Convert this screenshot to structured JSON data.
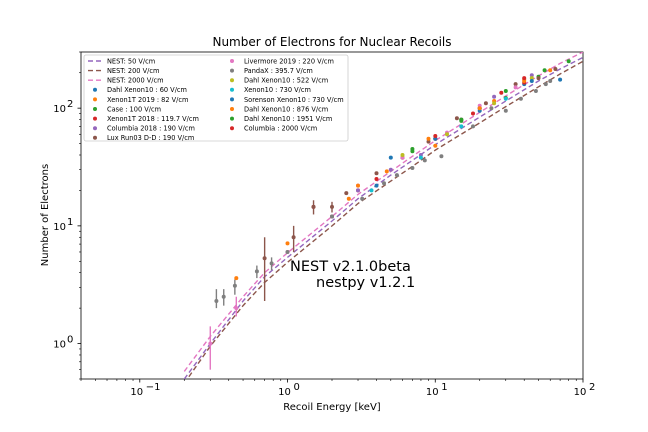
{
  "chart_data": {
    "type": "scatter",
    "title": "Number of Electrons for Nuclear Recoils",
    "xlabel": "Recoil Energy [keV]",
    "ylabel": "Number of Electrons",
    "xscale": "log",
    "yscale": "log",
    "xlim": [
      0.04,
      100
    ],
    "ylim": [
      0.5,
      300
    ],
    "x_ticks": [
      {
        "value": 0.1,
        "base": "10",
        "exp": "−1"
      },
      {
        "value": 1,
        "base": "10",
        "exp": "0"
      },
      {
        "value": 10,
        "base": "10",
        "exp": "1"
      },
      {
        "value": 100,
        "base": "10",
        "exp": "2"
      }
    ],
    "y_ticks": [
      {
        "value": 1,
        "base": "10",
        "exp": "0"
      },
      {
        "value": 10,
        "base": "10",
        "exp": "1"
      },
      {
        "value": 100,
        "base": "10",
        "exp": "2"
      }
    ],
    "grid": false,
    "legend_position": "upper-left",
    "annotations": [
      "NEST v2.1.0beta",
      "nestpy v1.2.1"
    ],
    "curves": [
      {
        "name": "NEST: 50 V/cm",
        "color": "#9467bd",
        "dashed": true,
        "points": [
          [
            0.2,
            0.5
          ],
          [
            0.3,
            1.0
          ],
          [
            0.5,
            2.3
          ],
          [
            0.7,
            3.7
          ],
          [
            1,
            5.4
          ],
          [
            2,
            11
          ],
          [
            3,
            17
          ],
          [
            5,
            27
          ],
          [
            7,
            36
          ],
          [
            10,
            49
          ],
          [
            20,
            84
          ],
          [
            30,
            115
          ],
          [
            50,
            170
          ],
          [
            70,
            215
          ],
          [
            100,
            270
          ]
        ]
      },
      {
        "name": "NEST: 200 V/cm",
        "color": "#8c564b",
        "dashed": true,
        "points": [
          [
            0.2,
            0.46
          ],
          [
            0.3,
            0.95
          ],
          [
            0.5,
            2.1
          ],
          [
            0.7,
            3.3
          ],
          [
            1,
            4.9
          ],
          [
            2,
            10
          ],
          [
            3,
            15.5
          ],
          [
            5,
            24
          ],
          [
            7,
            32
          ],
          [
            10,
            44
          ],
          [
            20,
            75
          ],
          [
            30,
            103
          ],
          [
            50,
            152
          ],
          [
            70,
            195
          ],
          [
            100,
            250
          ]
        ]
      },
      {
        "name": "NEST: 2000 V/cm",
        "color": "#e377c2",
        "dashed": true,
        "points": [
          [
            0.2,
            0.58
          ],
          [
            0.3,
            1.15
          ],
          [
            0.5,
            2.5
          ],
          [
            0.7,
            4.0
          ],
          [
            1,
            5.9
          ],
          [
            2,
            12
          ],
          [
            3,
            18.5
          ],
          [
            5,
            29
          ],
          [
            7,
            39
          ],
          [
            10,
            53
          ],
          [
            20,
            92
          ],
          [
            30,
            127
          ],
          [
            50,
            188
          ],
          [
            70,
            240
          ],
          [
            100,
            300
          ]
        ]
      }
    ],
    "series": [
      {
        "name": "Dahl Xenon10 : 60 V/cm",
        "color": "#1f77b4",
        "points": [
          [
            5,
            38
          ],
          [
            10,
            55
          ],
          [
            20,
            100
          ],
          [
            40,
            160
          ],
          [
            70,
            175
          ]
        ]
      },
      {
        "name": "Xenon1T 2019 : 82 V/cm",
        "color": "#ff7f0e",
        "points": [
          [
            0.45,
            3.6
          ],
          [
            1,
            7.1
          ],
          [
            2.6,
            17
          ],
          [
            4.7,
            29
          ],
          [
            10,
            48
          ],
          [
            15,
            80
          ],
          [
            25,
            115
          ],
          [
            40,
            175
          ]
        ]
      },
      {
        "name": "Case : 100 V/cm",
        "color": "#2ca02c",
        "points": [
          [
            7,
            43
          ],
          [
            15,
            78
          ],
          [
            30,
            122
          ],
          [
            50,
            185
          ]
        ]
      },
      {
        "name": "Xenon1T 2018 : 119.7 V/cm",
        "color": "#d62728",
        "points": [
          [
            1.5,
            14.5
          ],
          [
            3,
            20
          ],
          [
            6,
            38
          ],
          [
            10,
            55
          ],
          [
            20,
            100
          ],
          [
            40,
            165
          ]
        ]
      },
      {
        "name": "Columbia 2018 : 190 V/cm",
        "color": "#9467bd",
        "points": [
          [
            3,
            20
          ],
          [
            5,
            30
          ],
          [
            8,
            40
          ],
          [
            15,
            80
          ],
          [
            25,
            125
          ],
          [
            45,
            190
          ]
        ]
      },
      {
        "name": "Lux Run03 D-D : 190 V/cm",
        "color": "#8c564b",
        "points": [
          [
            0.7,
            5.3
          ],
          [
            1.1,
            8.0
          ],
          [
            1.5,
            14.5
          ],
          [
            2,
            14.5
          ],
          [
            2,
            12
          ],
          [
            2.5,
            19
          ],
          [
            4,
            28
          ],
          [
            6,
            38
          ],
          [
            9,
            52
          ],
          [
            14,
            82
          ],
          [
            22,
            110
          ],
          [
            35,
            160
          ],
          [
            50,
            180
          ],
          [
            65,
            215
          ]
        ],
        "errors": [
          [
            0.7,
            2.3,
            8.0
          ],
          [
            1.1,
            6.0,
            10.0
          ],
          [
            1.5,
            12.5,
            16.5
          ],
          [
            2,
            13,
            16
          ]
        ]
      },
      {
        "name": "Livermore 2019 : 220 V/cm",
        "color": "#e377c2",
        "points": [
          [
            0.3,
            1.0
          ],
          [
            0.45,
            2.0
          ],
          [
            1,
            6.0
          ],
          [
            3,
            22
          ],
          [
            6,
            38
          ],
          [
            12,
            62
          ],
          [
            20,
            105
          ],
          [
            35,
            150
          ]
        ],
        "errors": [
          [
            0.3,
            0.6,
            1.4
          ],
          [
            0.45,
            1.7,
            2.5
          ]
        ]
      },
      {
        "name": "PandaX : 395.7 V/cm",
        "color": "#7f7f7f",
        "points": [
          [
            0.33,
            2.3
          ],
          [
            0.37,
            2.5
          ],
          [
            0.44,
            3.1
          ],
          [
            0.62,
            4.1
          ],
          [
            0.78,
            4.8
          ],
          [
            1,
            6.0
          ],
          [
            2,
            12
          ],
          [
            3.2,
            17
          ],
          [
            4.5,
            23
          ],
          [
            5.5,
            27
          ],
          [
            7,
            31
          ],
          [
            8.5,
            36
          ],
          [
            11,
            39
          ],
          [
            18,
            70
          ],
          [
            24,
            100
          ],
          [
            30,
            95
          ],
          [
            38,
            120
          ],
          [
            48,
            140
          ],
          [
            56,
            160
          ],
          [
            60,
            170
          ]
        ],
        "errors": [
          [
            0.33,
            2.0,
            2.9
          ],
          [
            0.37,
            2.1,
            2.9
          ],
          [
            0.44,
            2.6,
            3.5
          ],
          [
            0.62,
            3.6,
            4.6
          ],
          [
            0.78,
            4.2,
            5.4
          ]
        ]
      },
      {
        "name": "Dahl Xenon10 : 522 V/cm",
        "color": "#bcbd22",
        "points": [
          [
            6,
            40
          ],
          [
            12,
            60
          ],
          [
            25,
            110
          ],
          [
            45,
            180
          ]
        ]
      },
      {
        "name": "Xenon10 : 730 V/cm",
        "color": "#17becf",
        "points": [
          [
            3.7,
            20
          ],
          [
            8,
            38
          ],
          [
            15,
            70
          ],
          [
            30,
            120
          ]
        ]
      },
      {
        "name": "Sorenson Xenon10 : 730 V/cm",
        "color": "#1f77b4",
        "points": [
          [
            4,
            22
          ],
          [
            10,
            55
          ],
          [
            20,
            95
          ],
          [
            45,
            170
          ]
        ]
      },
      {
        "name": "Dahl Xenon10 : 876 V/cm",
        "color": "#ff7f0e",
        "points": [
          [
            3,
            22
          ],
          [
            9,
            55
          ],
          [
            20,
            100
          ],
          [
            40,
            170
          ],
          [
            60,
            210
          ]
        ]
      },
      {
        "name": "Dahl Xenon10 : 1951 V/cm",
        "color": "#2ca02c",
        "points": [
          [
            7,
            45
          ],
          [
            15,
            80
          ],
          [
            30,
            140
          ],
          [
            55,
            210
          ],
          [
            80,
            250
          ]
        ]
      },
      {
        "name": "Columbia : 2000 V/cm",
        "color": "#d62728",
        "points": [
          [
            4,
            25
          ],
          [
            10,
            58
          ],
          [
            18,
            90
          ],
          [
            28,
            135
          ],
          [
            40,
            180
          ]
        ]
      }
    ]
  }
}
